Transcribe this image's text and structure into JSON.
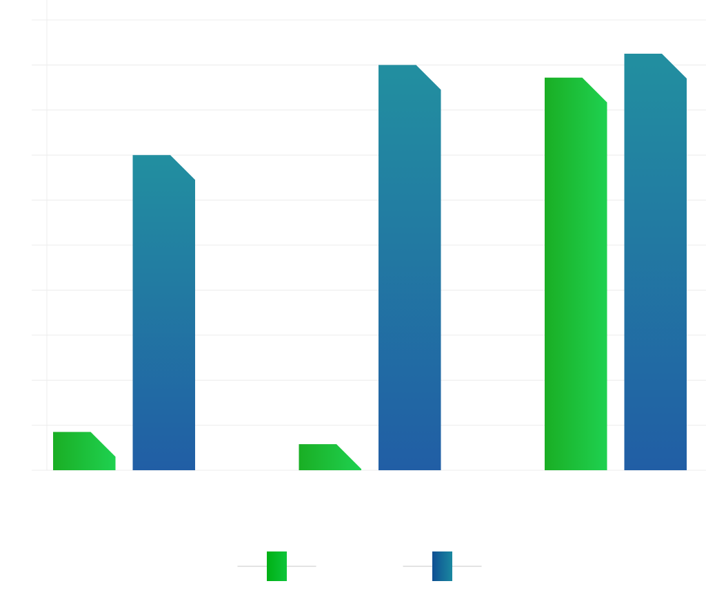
{
  "chart_data": {
    "type": "bar",
    "categories": [
      "",
      "",
      ""
    ],
    "series": [
      {
        "values": [
          8.5,
          5.8,
          87.2
        ],
        "color": "#1fc94a"
      },
      {
        "values": [
          70.0,
          90.0,
          92.5
        ],
        "color": "#2277aa"
      }
    ],
    "ylim": [
      0,
      100
    ],
    "grid": true,
    "legend_position": "bottom"
  }
}
